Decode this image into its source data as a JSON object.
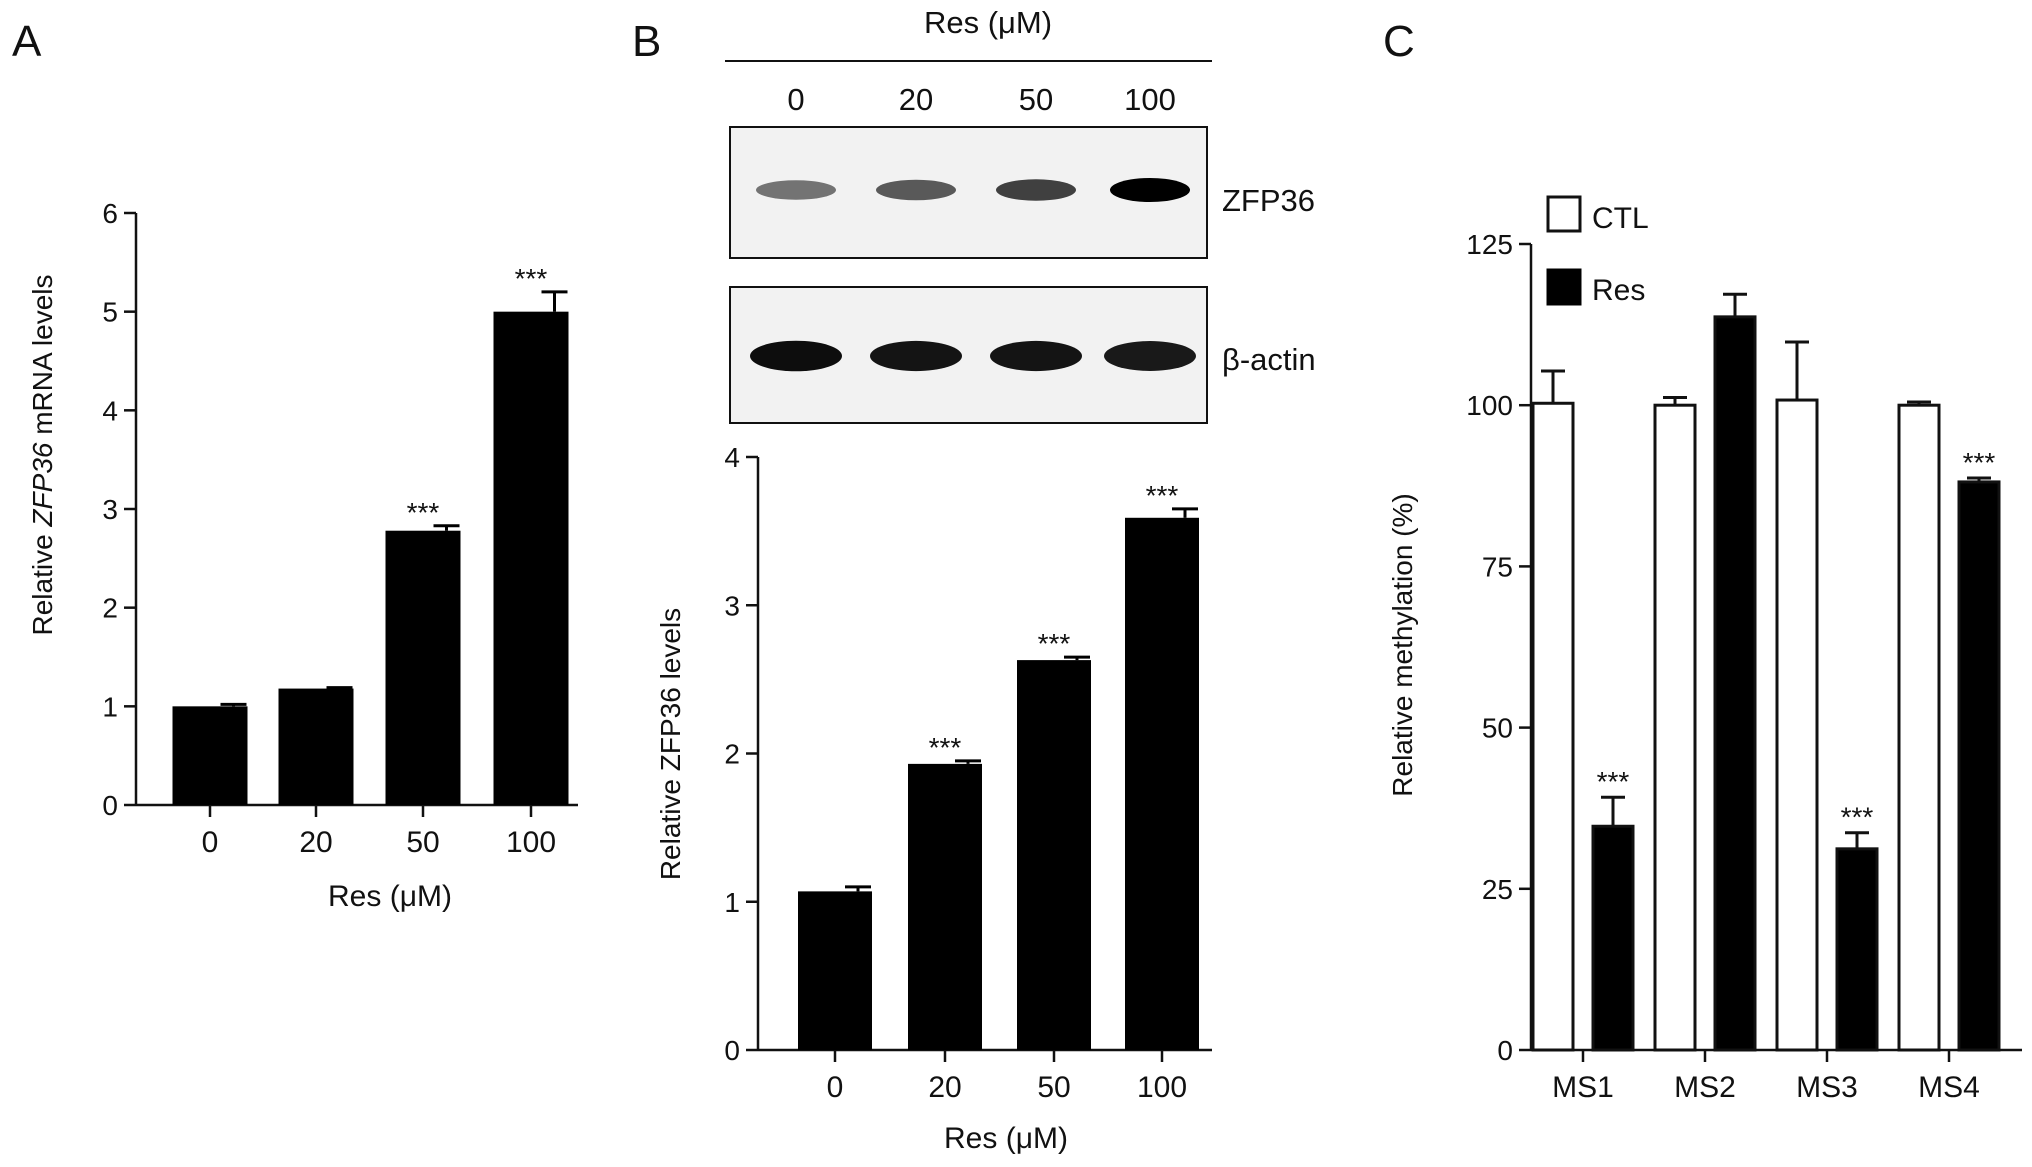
{
  "panels": {
    "A": {
      "letter": "A"
    },
    "B": {
      "letter": "B",
      "blot_header": "Res (μM)",
      "lane_labels": [
        "0",
        "20",
        "50",
        "100"
      ],
      "blot_rows": [
        {
          "label": "ZFP36",
          "intensity": [
            0.55,
            0.65,
            0.75,
            1.0
          ]
        },
        {
          "label": "β-actin",
          "intensity": [
            0.95,
            0.92,
            0.92,
            0.9
          ]
        }
      ]
    },
    "C": {
      "letter": "C"
    }
  },
  "chart_data": [
    {
      "type": "bar",
      "panel": "A",
      "categories": [
        "0",
        "20",
        "50",
        "100"
      ],
      "values": [
        1.0,
        1.18,
        2.78,
        5.0
      ],
      "errors": [
        0.02,
        0.01,
        0.05,
        0.2
      ],
      "significance": [
        "",
        "",
        "***",
        "***"
      ],
      "ylabel_pre": "Relative ",
      "ylabel_italic": "ZFP36",
      "ylabel_post": " mRNA levels",
      "xlabel": "Res (μM)",
      "ylim": [
        0,
        6
      ],
      "yticks": [
        "0",
        "1",
        "2",
        "3",
        "4",
        "5",
        "6"
      ],
      "bar_color": "#000000"
    },
    {
      "type": "bar",
      "panel": "B",
      "categories": [
        "0",
        "20",
        "50",
        "100"
      ],
      "values": [
        1.07,
        1.93,
        2.63,
        3.59
      ],
      "errors": [
        0.03,
        0.02,
        0.02,
        0.06
      ],
      "significance": [
        "",
        "***",
        "***",
        "***"
      ],
      "ylabel": "Relative ZFP36 levels",
      "xlabel": "Res (μM)",
      "ylim": [
        0,
        4
      ],
      "yticks": [
        "0",
        "1",
        "2",
        "3",
        "4"
      ],
      "bar_color": "#000000"
    },
    {
      "type": "bar",
      "panel": "C",
      "categories": [
        "MS1",
        "MS2",
        "MS3",
        "MS4"
      ],
      "series": [
        {
          "name": "CTL",
          "values": [
            100.3,
            100.0,
            100.8,
            100.0
          ],
          "errors": [
            5.0,
            1.2,
            9.0,
            0.5
          ],
          "significance": [
            "",
            "",
            "",
            ""
          ],
          "color": "#ffffff"
        },
        {
          "name": "Res",
          "values": [
            34.7,
            113.7,
            31.2,
            88.1
          ],
          "errors": [
            4.5,
            3.5,
            2.5,
            0.6
          ],
          "significance": [
            "***",
            "",
            "***",
            "***"
          ],
          "color": "#000000"
        }
      ],
      "ylabel": "Relative methylation (%)",
      "ylim": [
        0,
        125
      ],
      "yticks": [
        "0",
        "25",
        "50",
        "75",
        "100",
        "125"
      ],
      "legend_position": "top-left"
    }
  ]
}
